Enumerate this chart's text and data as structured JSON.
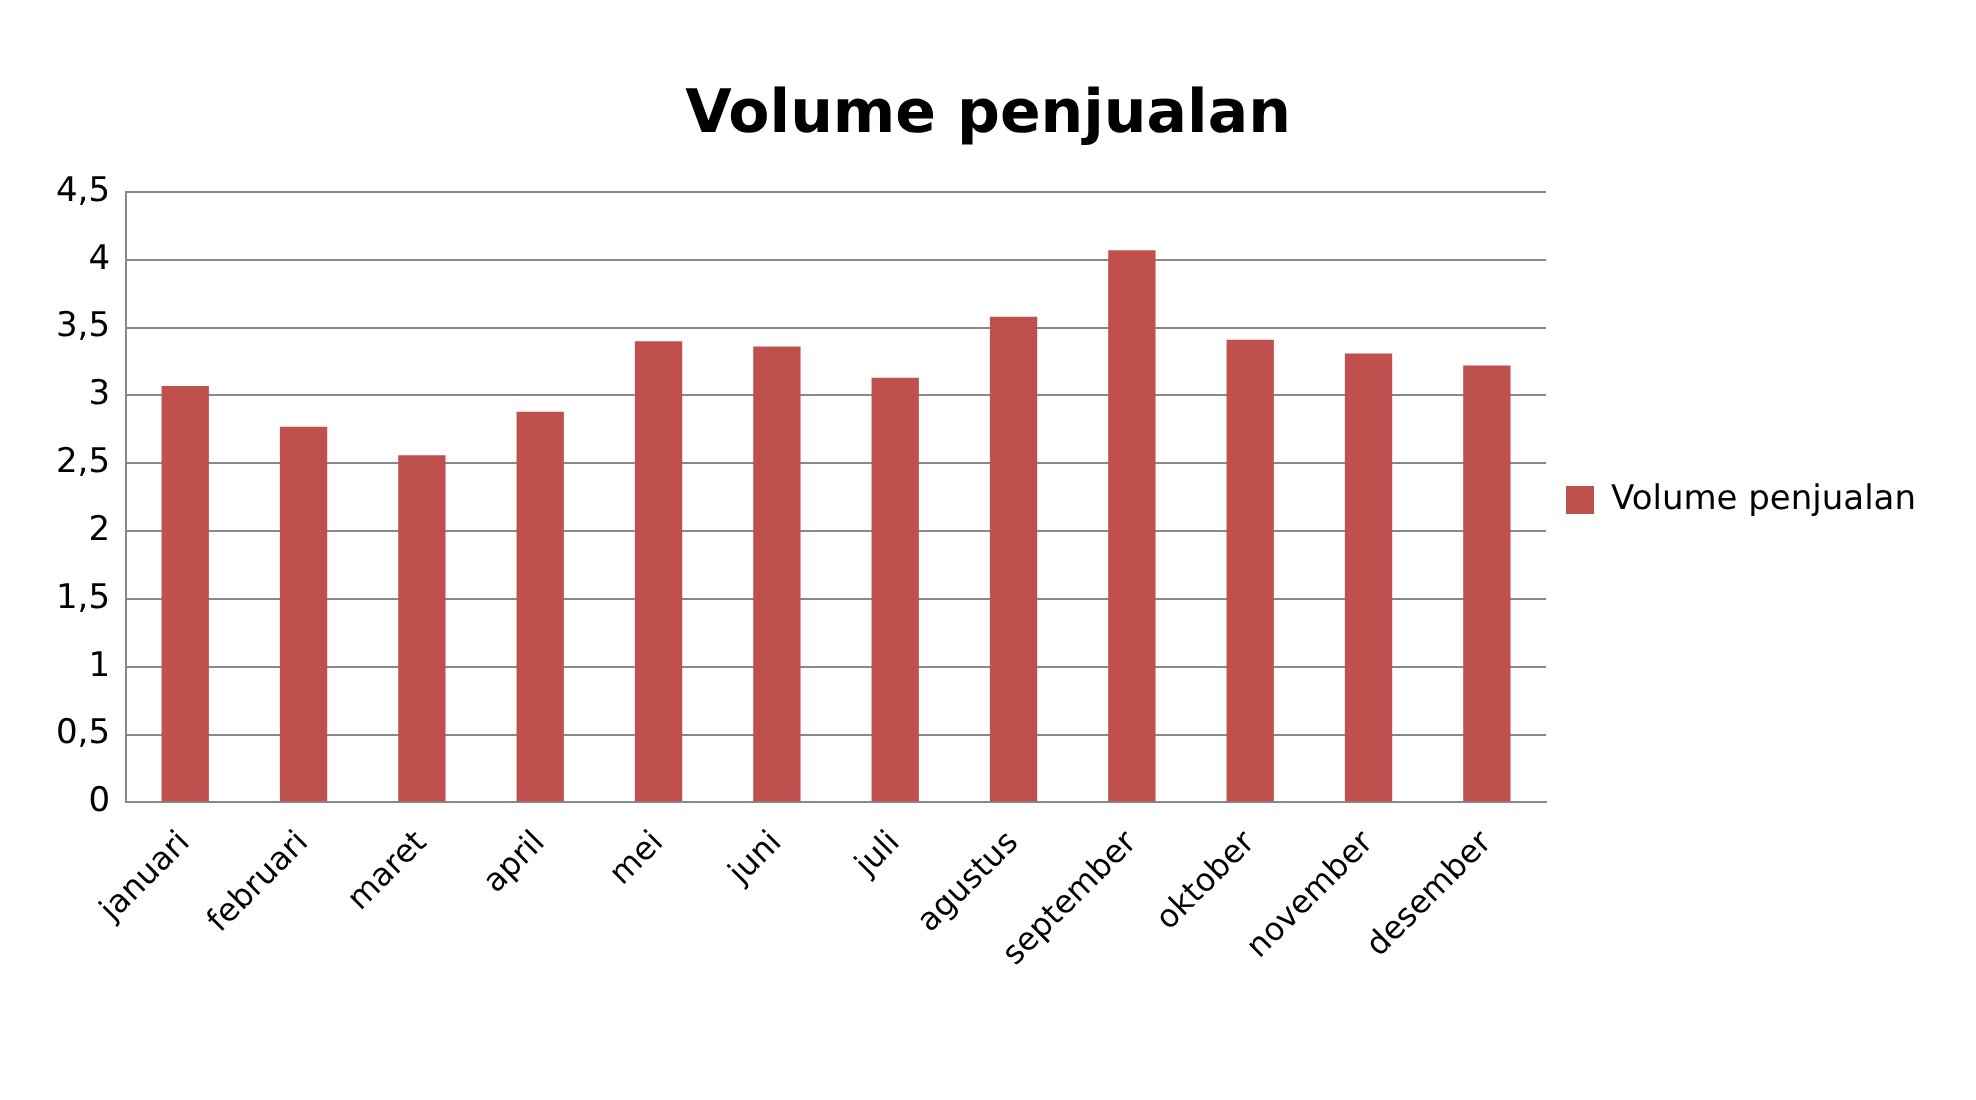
{
  "chart_data": {
    "type": "bar",
    "title": "Volume penjualan",
    "categories": [
      "januari",
      "februari",
      "maret",
      "april",
      "mei",
      "juni",
      "juli",
      "agustus",
      "september",
      "oktober",
      "november",
      "desember"
    ],
    "series": [
      {
        "name": "Volume penjualan",
        "color": "#c0504d",
        "values": [
          3.07,
          2.77,
          2.56,
          2.88,
          3.4,
          3.36,
          3.13,
          3.58,
          4.07,
          3.41,
          3.31,
          3.22
        ]
      }
    ],
    "ylim": [
      0,
      4.5
    ],
    "yticks": [
      0,
      {
        "value": 0.5,
        "label": "0,5"
      },
      1,
      {
        "value": 1.5,
        "label": "1,5"
      },
      2,
      {
        "value": 2.5,
        "label": "2,5"
      },
      3,
      {
        "value": 3.5,
        "label": "3,5"
      },
      4,
      {
        "value": 4.5,
        "label": "4,5"
      }
    ],
    "grid": "y",
    "legend": "right"
  }
}
